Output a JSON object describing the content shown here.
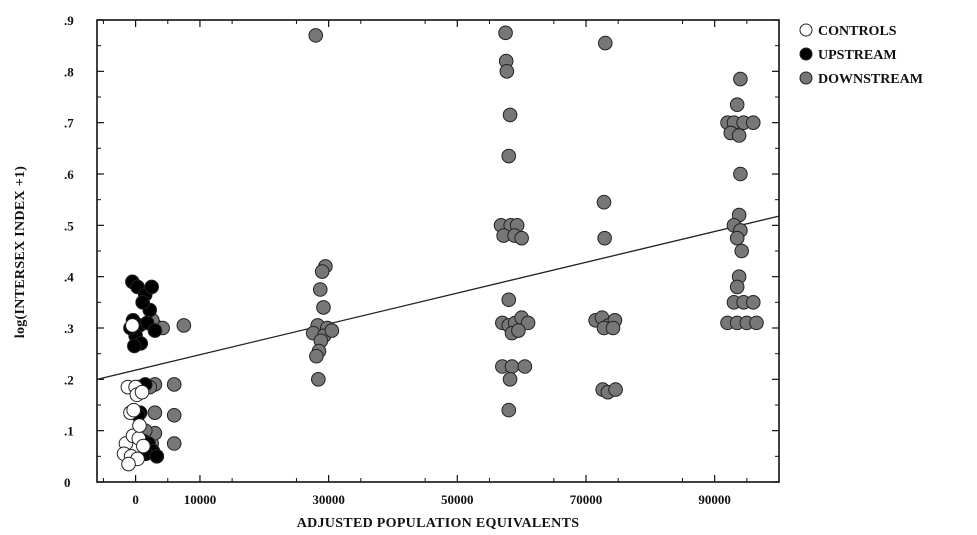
{
  "chart_data": {
    "type": "scatter",
    "title": "",
    "xlabel": "ADJUSTED POPULATION EQUIVALENTS",
    "ylabel": "log(INTERSEX INDEX +1)",
    "xlim": [
      -6000,
      100000
    ],
    "ylim": [
      0,
      0.9
    ],
    "xticks": [
      0,
      10000,
      30000,
      50000,
      70000,
      90000
    ],
    "xtick_labels": [
      "0",
      "10000",
      "30000",
      "50000",
      "70000",
      "90000"
    ],
    "yticks": [
      0,
      0.1,
      0.2,
      0.3,
      0.4,
      0.5,
      0.6,
      0.7,
      0.8,
      0.9
    ],
    "ytick_labels": [
      "0",
      ".1",
      ".2",
      ".3",
      ".4",
      ".5",
      ".6",
      ".7",
      ".8",
      ".9"
    ],
    "grid": false,
    "legend_position": "top-right",
    "colors": {
      "controls": "#ffffff",
      "upstream": "#000000",
      "downstream": "#777777",
      "outline": "#222222"
    },
    "series": [
      {
        "name": "CONTROLS",
        "marker": "open-circle",
        "points": [
          [
            -500,
            0.305
          ],
          [
            -1200,
            0.185
          ],
          [
            0,
            0.185
          ],
          [
            -800,
            0.135
          ],
          [
            200,
            0.17
          ],
          [
            -1500,
            0.075
          ],
          [
            -400,
            0.09
          ],
          [
            500,
            0.085
          ],
          [
            -1800,
            0.055
          ],
          [
            -700,
            0.05
          ],
          [
            300,
            0.045
          ],
          [
            1200,
            0.07
          ],
          [
            -1100,
            0.035
          ],
          [
            600,
            0.11
          ],
          [
            1000,
            0.175
          ],
          [
            -300,
            0.14
          ]
        ]
      },
      {
        "name": "UPSTREAM",
        "marker": "filled-circle",
        "points": [
          [
            -500,
            0.39
          ],
          [
            300,
            0.38
          ],
          [
            1500,
            0.365
          ],
          [
            2200,
            0.335
          ],
          [
            -400,
            0.315
          ],
          [
            600,
            0.305
          ],
          [
            1800,
            0.31
          ],
          [
            3000,
            0.295
          ],
          [
            0,
            0.285
          ],
          [
            800,
            0.27
          ],
          [
            -200,
            0.265
          ],
          [
            2500,
            0.38
          ],
          [
            500,
            0.185
          ],
          [
            1500,
            0.19
          ],
          [
            700,
            0.135
          ],
          [
            400,
            0.13
          ],
          [
            1200,
            0.08
          ],
          [
            2000,
            0.075
          ],
          [
            2700,
            0.06
          ],
          [
            1600,
            0.055
          ],
          [
            3300,
            0.05
          ],
          [
            -800,
            0.3
          ],
          [
            1100,
            0.35
          ]
        ]
      },
      {
        "name": "DOWNSTREAM",
        "marker": "gray-circle",
        "points": [
          [
            3000,
            0.305
          ],
          [
            4200,
            0.3
          ],
          [
            2600,
            0.315
          ],
          [
            7500,
            0.305
          ],
          [
            6000,
            0.19
          ],
          [
            6000,
            0.13
          ],
          [
            3000,
            0.19
          ],
          [
            3000,
            0.135
          ],
          [
            6000,
            0.075
          ],
          [
            2500,
            0.075
          ],
          [
            2000,
            0.085
          ],
          [
            3000,
            0.095
          ],
          [
            1500,
            0.1
          ],
          [
            2200,
            0.185
          ],
          [
            28000,
            0.87
          ],
          [
            29500,
            0.42
          ],
          [
            29000,
            0.41
          ],
          [
            28700,
            0.375
          ],
          [
            29200,
            0.34
          ],
          [
            28300,
            0.305
          ],
          [
            29800,
            0.3
          ],
          [
            27600,
            0.29
          ],
          [
            29300,
            0.285
          ],
          [
            28800,
            0.275
          ],
          [
            30500,
            0.295
          ],
          [
            28500,
            0.255
          ],
          [
            28100,
            0.245
          ],
          [
            28400,
            0.2
          ],
          [
            57500,
            0.875
          ],
          [
            57600,
            0.82
          ],
          [
            57700,
            0.8
          ],
          [
            58200,
            0.715
          ],
          [
            58000,
            0.635
          ],
          [
            56800,
            0.5
          ],
          [
            58300,
            0.5
          ],
          [
            59300,
            0.5
          ],
          [
            57200,
            0.48
          ],
          [
            58900,
            0.48
          ],
          [
            60000,
            0.475
          ],
          [
            58000,
            0.355
          ],
          [
            57000,
            0.31
          ],
          [
            58000,
            0.305
          ],
          [
            59000,
            0.31
          ],
          [
            60000,
            0.32
          ],
          [
            61000,
            0.31
          ],
          [
            58500,
            0.29
          ],
          [
            59500,
            0.295
          ],
          [
            57000,
            0.225
          ],
          [
            58500,
            0.225
          ],
          [
            60500,
            0.225
          ],
          [
            58200,
            0.2
          ],
          [
            58000,
            0.14
          ],
          [
            73000,
            0.855
          ],
          [
            72800,
            0.545
          ],
          [
            72900,
            0.475
          ],
          [
            71500,
            0.315
          ],
          [
            72500,
            0.32
          ],
          [
            73500,
            0.305
          ],
          [
            74500,
            0.315
          ],
          [
            72800,
            0.3
          ],
          [
            74200,
            0.3
          ],
          [
            72600,
            0.18
          ],
          [
            73400,
            0.175
          ],
          [
            74600,
            0.18
          ],
          [
            94000,
            0.785
          ],
          [
            93500,
            0.735
          ],
          [
            92000,
            0.7
          ],
          [
            93000,
            0.7
          ],
          [
            94500,
            0.7
          ],
          [
            96000,
            0.7
          ],
          [
            92500,
            0.68
          ],
          [
            93800,
            0.675
          ],
          [
            94000,
            0.6
          ],
          [
            93800,
            0.52
          ],
          [
            93000,
            0.5
          ],
          [
            94000,
            0.49
          ],
          [
            93500,
            0.475
          ],
          [
            94200,
            0.45
          ],
          [
            93800,
            0.4
          ],
          [
            93500,
            0.38
          ],
          [
            93000,
            0.35
          ],
          [
            94500,
            0.35
          ],
          [
            96000,
            0.35
          ],
          [
            92000,
            0.31
          ],
          [
            93500,
            0.31
          ],
          [
            95000,
            0.31
          ],
          [
            96500,
            0.31
          ]
        ]
      }
    ],
    "regression_line": {
      "x": [
        -6000,
        100000
      ],
      "y": [
        0.2,
        0.518
      ]
    }
  }
}
